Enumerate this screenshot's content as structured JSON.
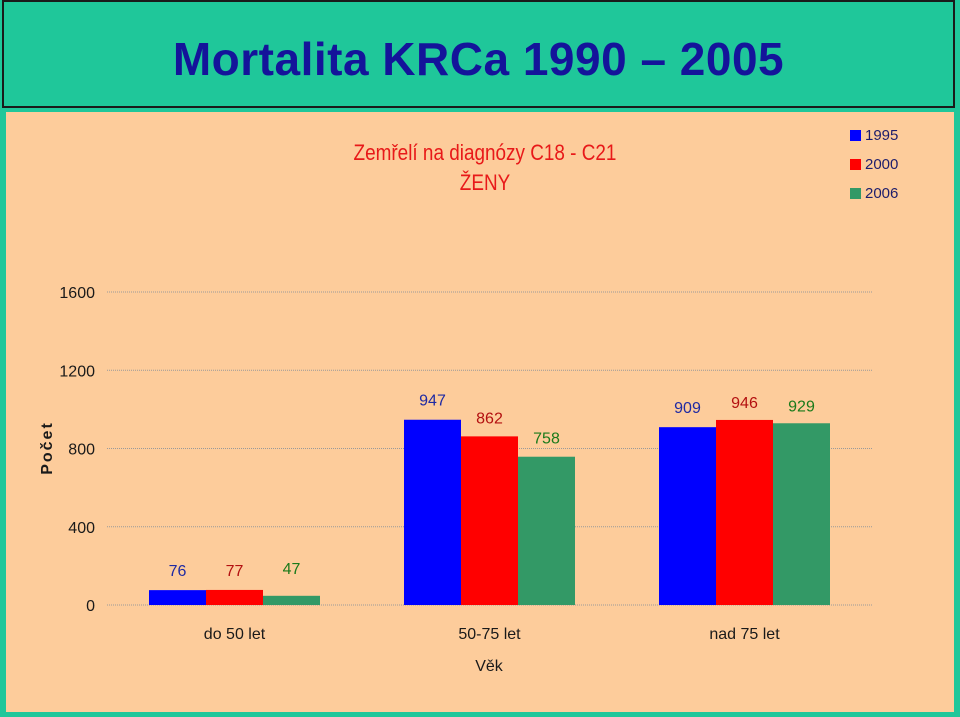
{
  "slide_title": "Mortalita KRCa 1990 – 2005",
  "colors": {
    "s1995": "#0000ff",
    "s2000": "#ff0000",
    "s2006": "#339966",
    "label1995": "#1f2aa3",
    "label2000": "#b31010",
    "label2006": "#1a7a1a"
  },
  "chart_data": {
    "type": "bar",
    "title": "Zemřelí na diagnózy C18 - C21",
    "subtitle": "ŽENY",
    "xlabel": "Věk",
    "ylabel": "Počet",
    "categories": [
      "do 50 let",
      "50-75 let",
      "nad 75 let"
    ],
    "series": [
      {
        "name": "1995",
        "values": [
          76,
          947,
          909
        ]
      },
      {
        "name": "2000",
        "values": [
          77,
          862,
          946
        ]
      },
      {
        "name": "2006",
        "values": [
          47,
          758,
          929
        ]
      }
    ],
    "ylim": [
      0,
      1600
    ],
    "yticks": [
      0,
      400,
      800,
      1200,
      1600
    ],
    "grid": true,
    "legend": "top-right"
  }
}
